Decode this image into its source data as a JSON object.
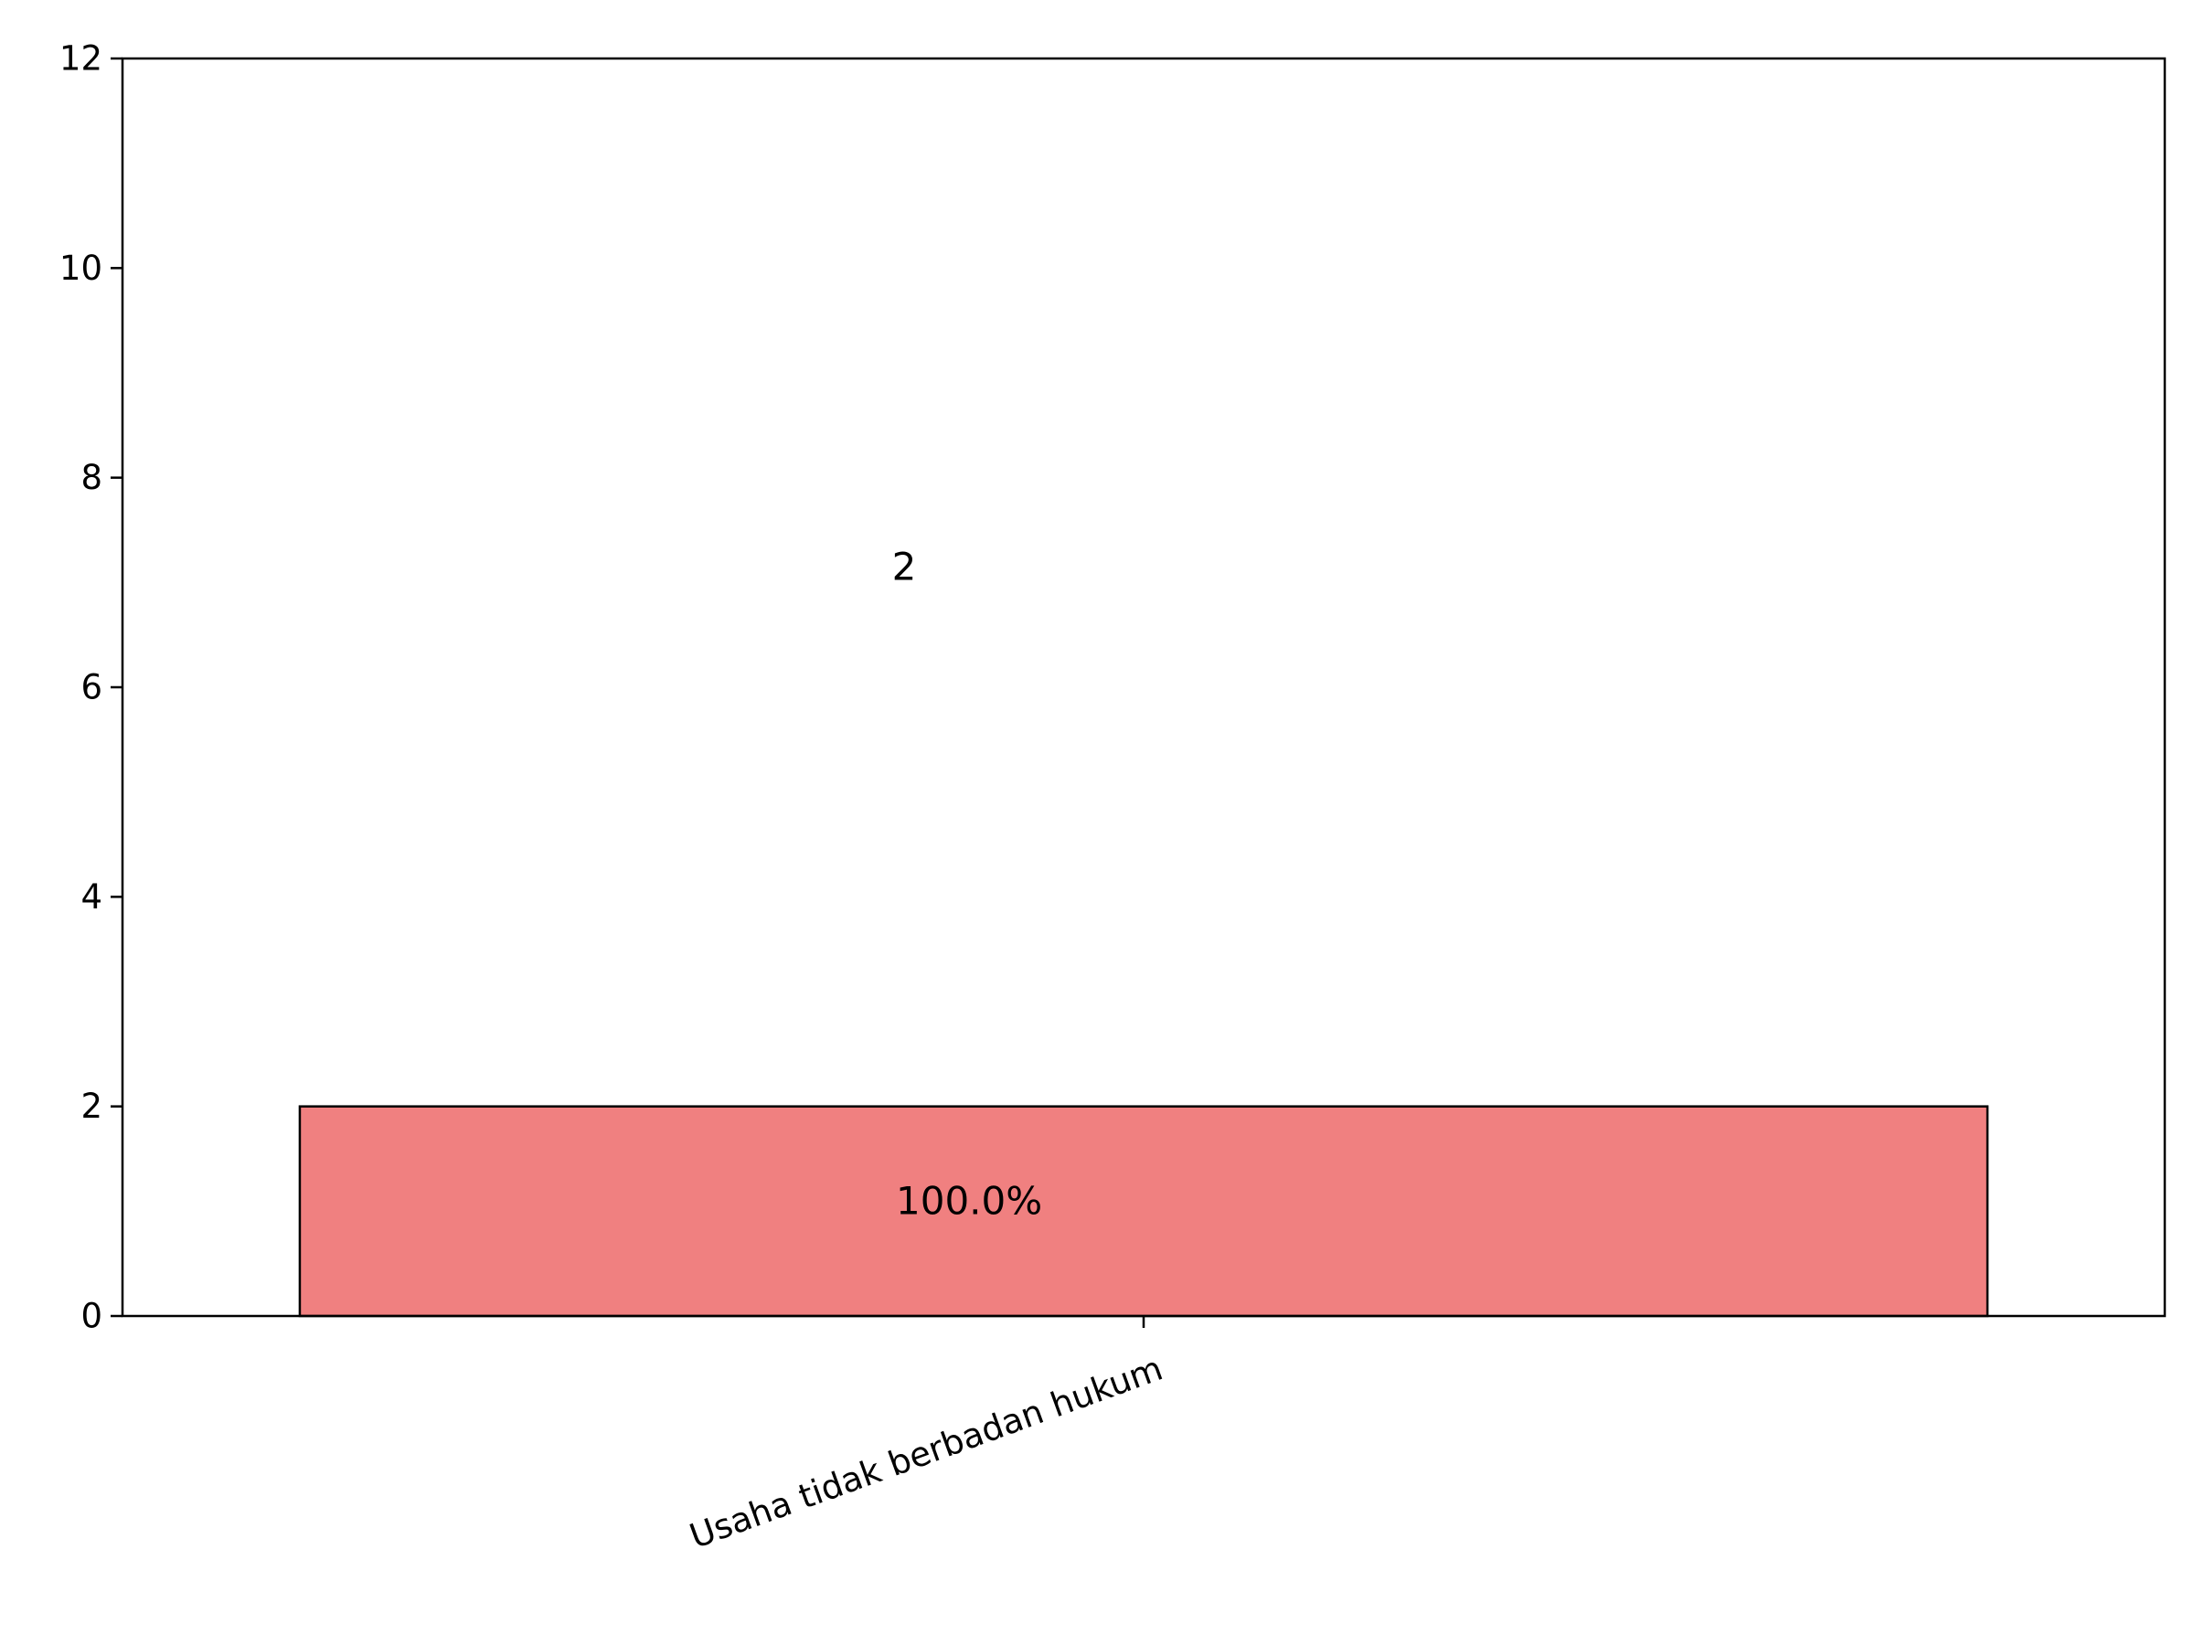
{
  "chart_data": {
    "type": "bar",
    "title": "",
    "xlabel": "",
    "ylabel": "",
    "categories": [
      "Usaha tidak berbadan hukum"
    ],
    "values": [
      2
    ],
    "value_labels": [
      "2"
    ],
    "percent_labels": [
      "100.0%"
    ],
    "ylim": [
      0,
      12
    ],
    "yticks": [
      0,
      2,
      4,
      6,
      8,
      10,
      12
    ],
    "grid": false,
    "legend": "none",
    "bar_color": "#f08080",
    "edge_color": "#000000"
  }
}
